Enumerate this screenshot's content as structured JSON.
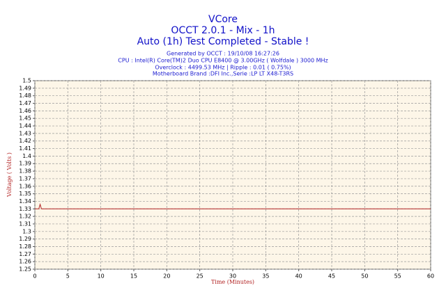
{
  "chart_data": {
    "type": "line",
    "title": "VCore",
    "subtitle": "OCCT 2.0.1 - Mix - 1h",
    "status": "Auto (1h) Test Completed - Stable !",
    "info": [
      "Generated by OCCT : 19/10/08 16:27:26",
      "CPU : Intel(R) Core(TM)2 Duo CPU E8400 @ 3.00GHz ( Wolfdale ) 3000 MHz",
      "Overclock : 4499.53 MHz | Ripple : 0.01 ( 0.75%)",
      "Motherboard Brand :DFI Inc.,Serie :LP LT X48-T3RS"
    ],
    "x_label": "Time (Minutes)",
    "y_label": "Voltage ( Volts )",
    "x": [
      0,
      0.6,
      0.8,
      1.0,
      60
    ],
    "series": [
      {
        "name": "VCore",
        "color": "#b22222",
        "values": [
          1.33,
          1.33,
          1.336,
          1.33,
          1.33
        ]
      }
    ],
    "xlim": [
      0,
      60
    ],
    "xticks": [
      0,
      5,
      10,
      15,
      20,
      25,
      30,
      35,
      40,
      45,
      50,
      55,
      60
    ],
    "ylim": [
      1.25,
      1.5
    ],
    "yticks": [
      1.25,
      1.26,
      1.27,
      1.28,
      1.29,
      1.3,
      1.31,
      1.32,
      1.33,
      1.34,
      1.35,
      1.36,
      1.37,
      1.38,
      1.39,
      1.4,
      1.41,
      1.42,
      1.43,
      1.44,
      1.45,
      1.46,
      1.47,
      1.48,
      1.49,
      1.5
    ],
    "grid": true
  }
}
